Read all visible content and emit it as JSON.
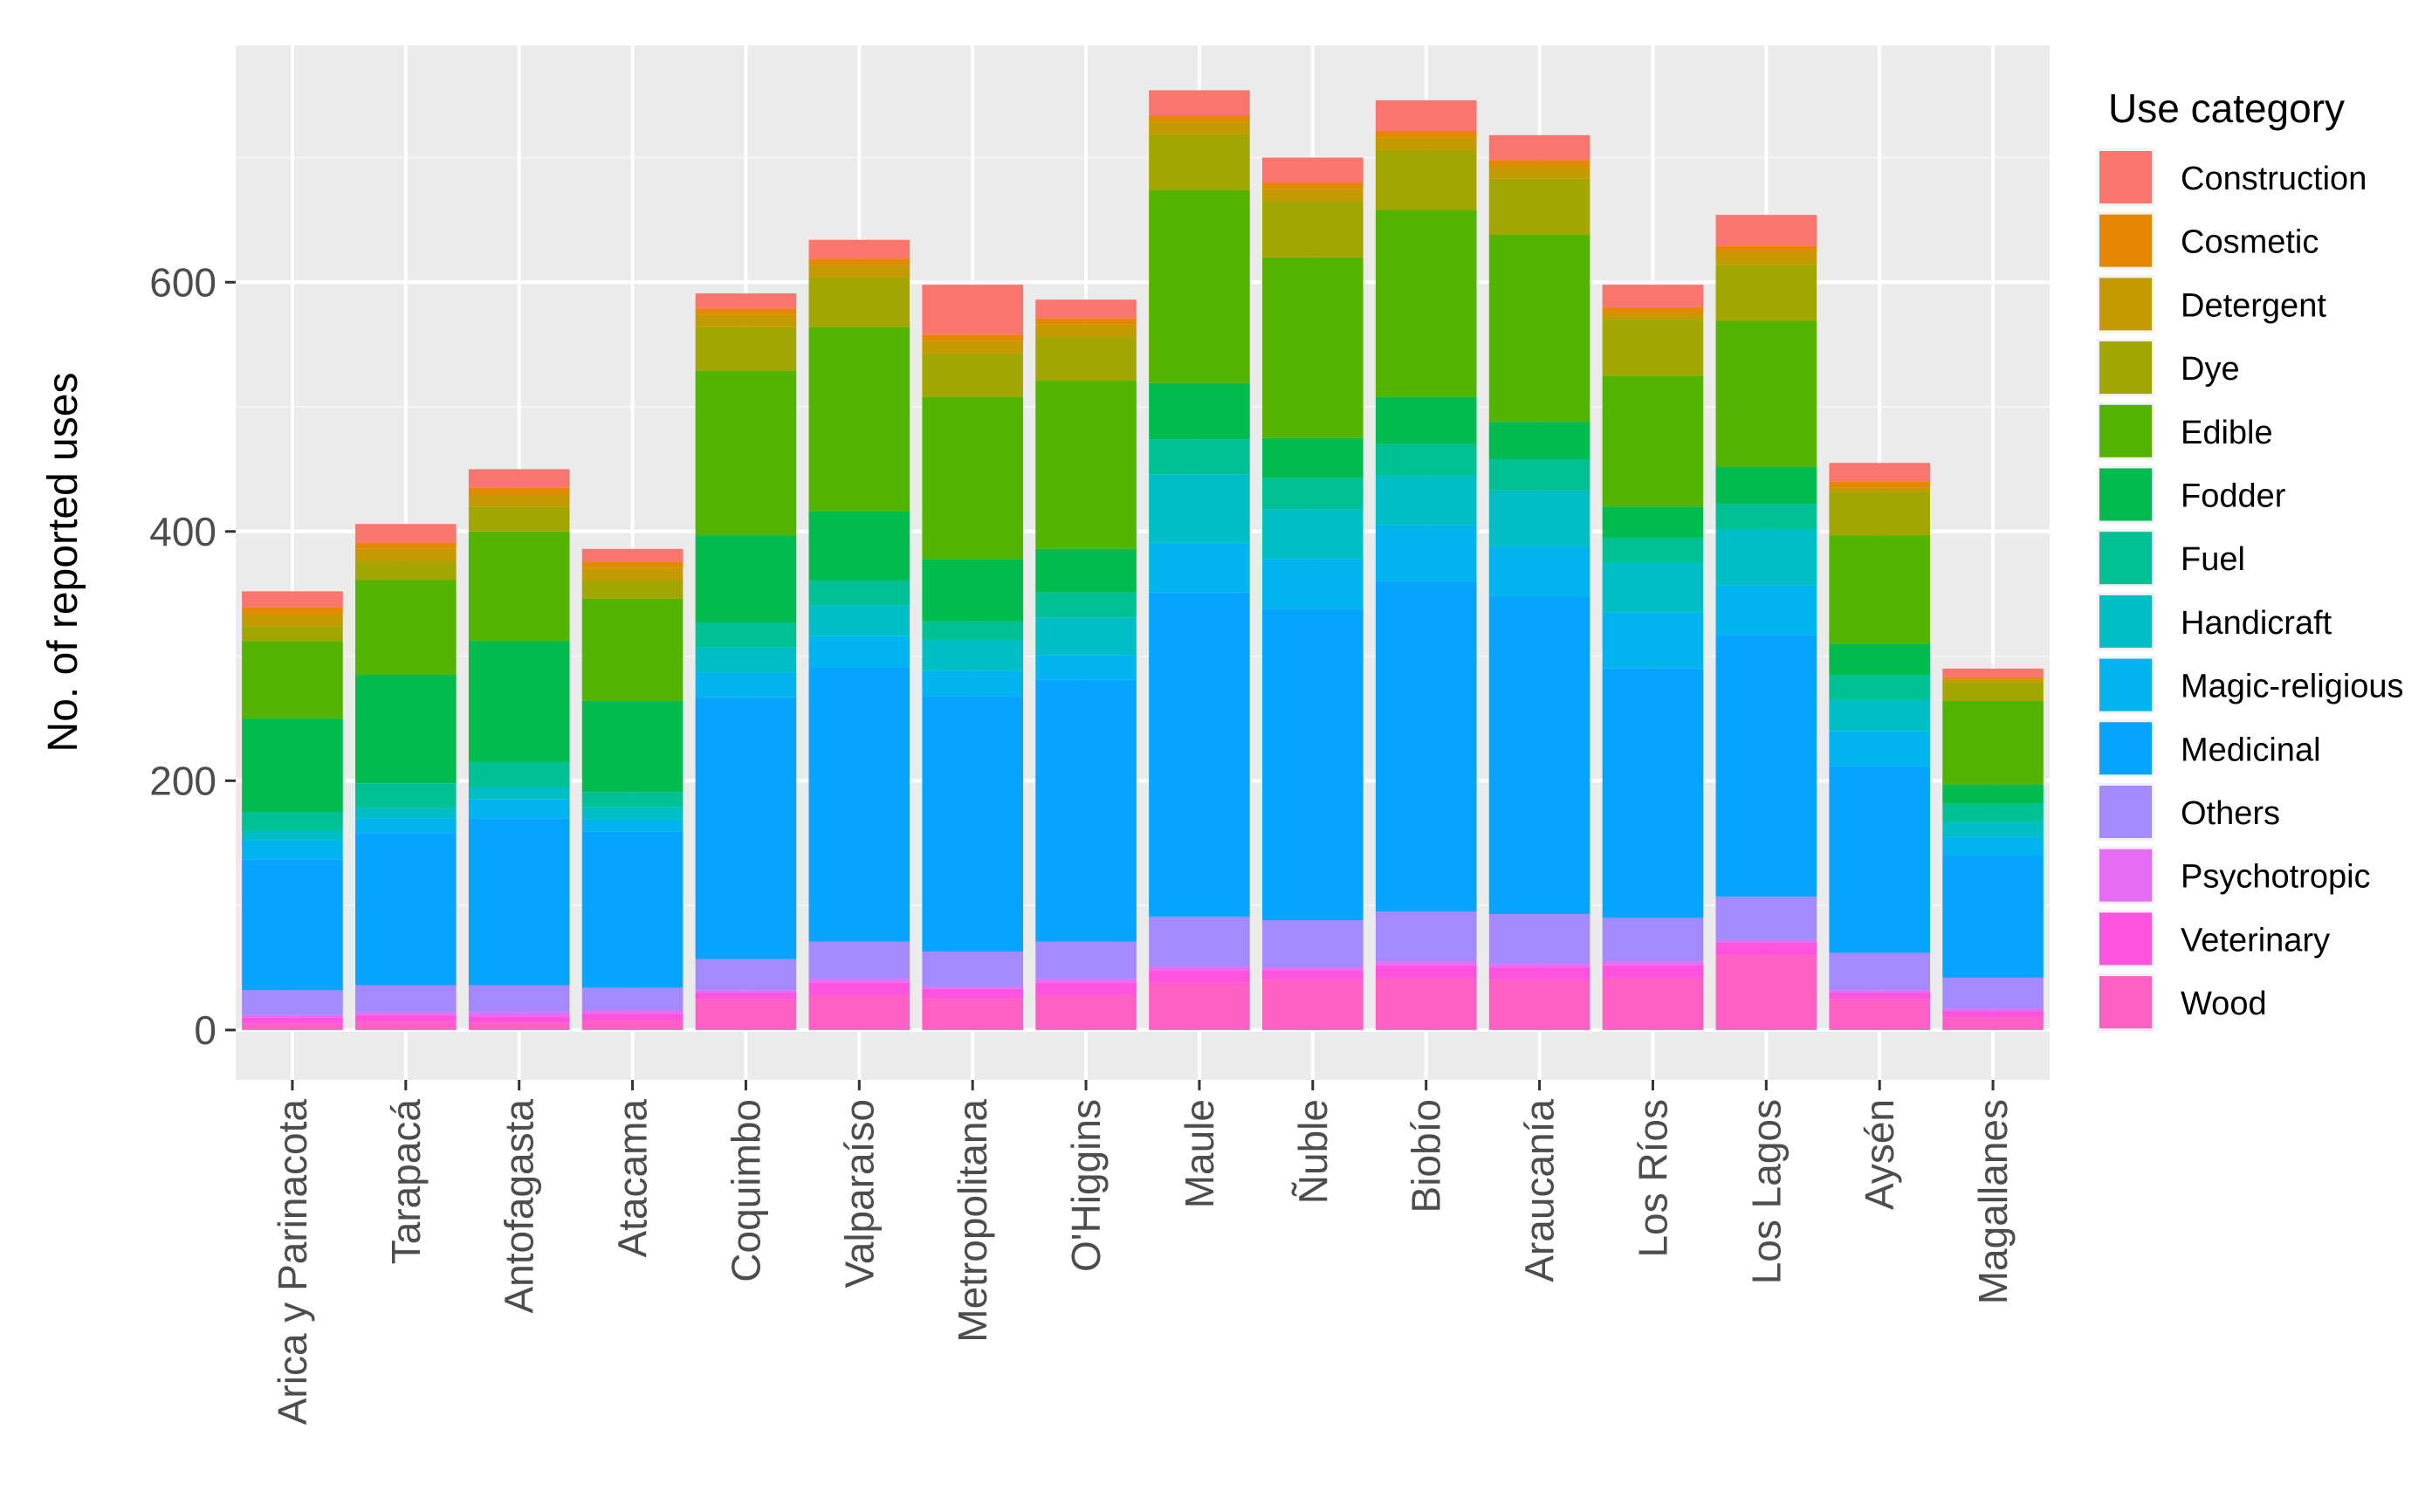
{
  "chart_data": {
    "type": "bar",
    "stacked": true,
    "title": "",
    "xlabel": "",
    "ylabel": "No. of reported uses",
    "ylim": [
      0,
      790
    ],
    "yticks": [
      0,
      200,
      400,
      600
    ],
    "grid": true,
    "legend": {
      "title": "Use category",
      "position": "right"
    },
    "categories": [
      "Arica y Parinacota",
      "Tarapacá",
      "Antofagasta",
      "Atacama",
      "Coquimbo",
      "Valparaíso",
      "Metropolitana",
      "O'Higgins",
      "Maule",
      "Ñuble",
      "Biobío",
      "Araucanía",
      "Los Ríos",
      "Los Lagos",
      "Aysén",
      "Magallanes"
    ],
    "series": [
      {
        "name": "Wood",
        "color": "#FF61C3",
        "values": [
          5,
          7,
          6,
          8,
          25,
          28,
          25,
          28,
          38,
          40,
          42,
          40,
          42,
          60,
          25,
          10
        ]
      },
      {
        "name": "Veterinary",
        "color": "#FF52DE",
        "values": [
          5,
          5,
          5,
          5,
          5,
          10,
          8,
          10,
          10,
          8,
          10,
          10,
          10,
          10,
          5,
          5
        ]
      },
      {
        "name": "Psychotropic",
        "color": "#E76BF3",
        "values": [
          2,
          2,
          3,
          3,
          2,
          3,
          2,
          3,
          3,
          2,
          3,
          3,
          3,
          2,
          2,
          2
        ]
      },
      {
        "name": "Others",
        "color": "#A58AFF",
        "values": [
          20,
          22,
          22,
          18,
          25,
          30,
          28,
          30,
          40,
          38,
          40,
          40,
          35,
          35,
          30,
          25
        ]
      },
      {
        "name": "Medicinal",
        "color": "#06A4FF",
        "values": [
          105,
          122,
          134,
          125,
          210,
          220,
          205,
          210,
          260,
          250,
          265,
          255,
          200,
          210,
          150,
          98
        ]
      },
      {
        "name": "Magic-religious",
        "color": "#00B4EF",
        "values": [
          15,
          12,
          15,
          10,
          20,
          25,
          20,
          20,
          40,
          40,
          45,
          40,
          45,
          40,
          28,
          15
        ]
      },
      {
        "name": "Handicraft",
        "color": "#00BFC4",
        "values": [
          8,
          8,
          10,
          10,
          20,
          25,
          25,
          30,
          55,
          40,
          40,
          45,
          40,
          45,
          25,
          12
        ]
      },
      {
        "name": "Fuel",
        "color": "#00C094",
        "values": [
          15,
          20,
          20,
          12,
          20,
          20,
          15,
          20,
          28,
          25,
          25,
          25,
          20,
          20,
          20,
          15
        ]
      },
      {
        "name": "Fodder",
        "color": "#00BB4E",
        "values": [
          75,
          87,
          97,
          73,
          70,
          55,
          50,
          35,
          45,
          32,
          38,
          30,
          25,
          30,
          25,
          15
        ]
      },
      {
        "name": "Edible",
        "color": "#53B400",
        "values": [
          62,
          76,
          88,
          82,
          132,
          148,
          130,
          135,
          155,
          145,
          150,
          150,
          105,
          117,
          87,
          67
        ]
      },
      {
        "name": "Dye",
        "color": "#A3A500",
        "values": [
          12,
          15,
          20,
          15,
          35,
          40,
          35,
          35,
          45,
          45,
          48,
          45,
          45,
          45,
          35,
          15
        ]
      },
      {
        "name": "Detergent",
        "color": "#C49A00",
        "values": [
          10,
          10,
          10,
          10,
          10,
          10,
          10,
          10,
          10,
          10,
          10,
          10,
          5,
          10,
          3,
          2
        ]
      },
      {
        "name": "Cosmetic",
        "color": "#E58700",
        "values": [
          5,
          5,
          5,
          5,
          5,
          5,
          5,
          5,
          5,
          5,
          5,
          5,
          5,
          5,
          5,
          2
        ]
      },
      {
        "name": "Construction",
        "color": "#F8766D",
        "values": [
          13,
          15,
          15,
          10,
          12,
          15,
          40,
          15,
          20,
          20,
          25,
          20,
          18,
          25,
          15,
          7
        ]
      }
    ]
  }
}
